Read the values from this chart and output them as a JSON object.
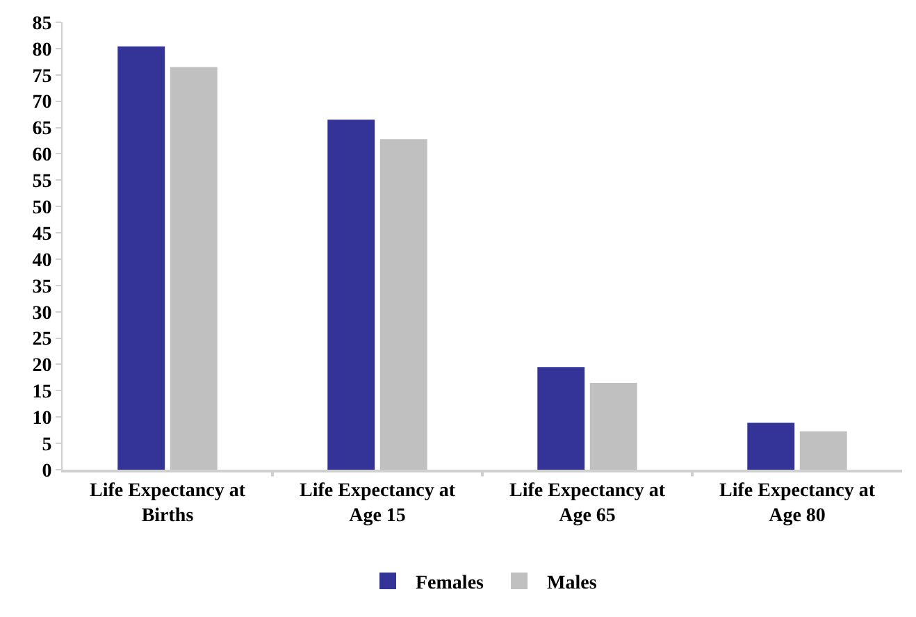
{
  "chart_data": {
    "type": "bar",
    "categories": [
      "Life Expectancy at Births",
      "Life Expectancy at Age 15",
      "Life Expectancy at Age 65",
      "Life Expectancy at Age 80"
    ],
    "series": [
      {
        "name": "Females",
        "color": "#343397",
        "values": [
          80.4,
          66.5,
          19.5,
          8.9
        ]
      },
      {
        "name": "Males",
        "color": "#c0c0c0",
        "values": [
          76.5,
          62.8,
          16.5,
          7.3
        ]
      }
    ],
    "ylim": [
      0,
      85
    ],
    "yticks": [
      0,
      5,
      10,
      15,
      20,
      25,
      30,
      35,
      40,
      45,
      50,
      55,
      60,
      65,
      70,
      75,
      80,
      85
    ],
    "legend": "bottom"
  }
}
